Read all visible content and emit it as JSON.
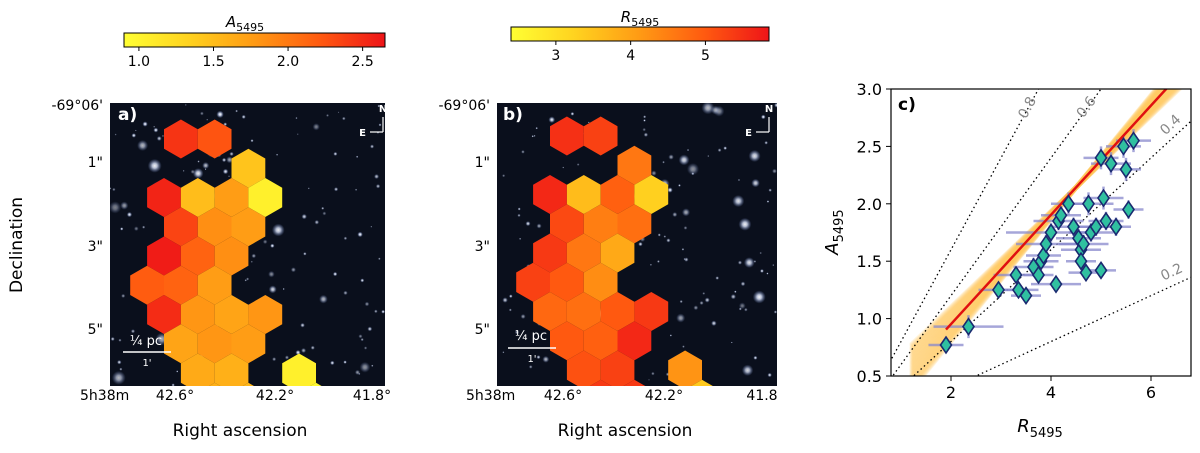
{
  "colors": {
    "cmap": [
      "#ffff33",
      "#ffd21f",
      "#ff9a14",
      "#ff5a10",
      "#ee1418"
    ],
    "fit_line": "#e01010",
    "marker_fill": "#30c0a0",
    "marker_edge": "#1a2a70",
    "errorbar": "#8888cc",
    "band": "#ffc85a",
    "sky": "#0a0f1c"
  },
  "chart_data": [
    {
      "panel": "a",
      "type": "heatmap",
      "panel_label": "a)",
      "colorbar": {
        "title": "A",
        "title_sub": "5495",
        "range": [
          0.9,
          2.65
        ],
        "ticks": [
          1.0,
          1.5,
          2.0,
          2.5
        ],
        "tick_labels": [
          "1.0",
          "1.5",
          "2.0",
          "2.5"
        ]
      },
      "ylabel": "Declination",
      "xlabel": "Right ascension",
      "y_ticks": [
        "-69°06'",
        "1\"",
        "3\"",
        "5\""
      ],
      "x_ticks": [
        "5h38m",
        "42.6°",
        "42.2°",
        "41.8°"
      ],
      "compass": {
        "north": "N",
        "east": "E"
      },
      "scalebar": {
        "label": "¼ pc",
        "sublabel": "1'"
      },
      "hex_cells": [
        {
          "col": 1,
          "row": 0,
          "value": 2.45
        },
        {
          "col": 3,
          "row": 0,
          "value": 2.25
        },
        {
          "col": 5,
          "row": 1,
          "value": 1.45
        },
        {
          "col": 0,
          "row": 2,
          "value": 2.55
        },
        {
          "col": 2,
          "row": 2,
          "value": 1.5
        },
        {
          "col": 4,
          "row": 2,
          "value": 1.75
        },
        {
          "col": 6,
          "row": 2,
          "value": 1.05
        },
        {
          "col": 1,
          "row": 3,
          "value": 2.35
        },
        {
          "col": 3,
          "row": 3,
          "value": 1.85
        },
        {
          "col": 5,
          "row": 3,
          "value": 1.75
        },
        {
          "col": 0,
          "row": 4,
          "value": 2.6
        },
        {
          "col": 2,
          "row": 4,
          "value": 2.15
        },
        {
          "col": 4,
          "row": 4,
          "value": 1.85
        },
        {
          "col": -1,
          "row": 5,
          "value": 2.2
        },
        {
          "col": 1,
          "row": 5,
          "value": 2.15
        },
        {
          "col": 3,
          "row": 5,
          "value": 1.75
        },
        {
          "col": 0,
          "row": 6,
          "value": 2.5
        },
        {
          "col": 2,
          "row": 6,
          "value": 1.8
        },
        {
          "col": 4,
          "row": 6,
          "value": 1.7
        },
        {
          "col": 6,
          "row": 6,
          "value": 1.8
        },
        {
          "col": 1,
          "row": 7,
          "value": 1.7
        },
        {
          "col": 3,
          "row": 7,
          "value": 1.8
        },
        {
          "col": 5,
          "row": 7,
          "value": 1.75
        },
        {
          "col": 2,
          "row": 8,
          "value": 1.65
        },
        {
          "col": 4,
          "row": 8,
          "value": 1.6
        },
        {
          "col": 8,
          "row": 8,
          "value": 1.05
        },
        {
          "col": 3,
          "row": 9,
          "value": 1.6
        },
        {
          "col": 5,
          "row": 9,
          "value": 1.55
        },
        {
          "col": 9,
          "row": 9,
          "value": 0.95
        }
      ]
    },
    {
      "panel": "b",
      "type": "heatmap",
      "panel_label": "b)",
      "colorbar": {
        "title": "R",
        "title_sub": "5495",
        "range": [
          2.4,
          5.85
        ],
        "ticks": [
          3,
          4,
          5
        ],
        "tick_labels": [
          "3",
          "4",
          "5"
        ]
      },
      "xlabel": "Right ascension",
      "y_ticks": [
        "-69°06'",
        "1\"",
        "3\"",
        "5\""
      ],
      "x_ticks": [
        "5h38m",
        "42.6°",
        "42.2°",
        "41.8"
      ],
      "compass": {
        "north": "N",
        "east": "E"
      },
      "scalebar": {
        "label": "¼ pc",
        "sublabel": "1'"
      },
      "hex_cells": [
        {
          "col": 1,
          "row": 0,
          "value": 5.5
        },
        {
          "col": 3,
          "row": 0,
          "value": 5.3
        },
        {
          "col": 5,
          "row": 1,
          "value": 4.6
        },
        {
          "col": 0,
          "row": 2,
          "value": 5.6
        },
        {
          "col": 2,
          "row": 2,
          "value": 3.6
        },
        {
          "col": 4,
          "row": 2,
          "value": 4.9
        },
        {
          "col": 6,
          "row": 2,
          "value": 3.3
        },
        {
          "col": 1,
          "row": 3,
          "value": 5.2
        },
        {
          "col": 3,
          "row": 3,
          "value": 4.5
        },
        {
          "col": 5,
          "row": 3,
          "value": 4.7
        },
        {
          "col": 0,
          "row": 4,
          "value": 5.4
        },
        {
          "col": 2,
          "row": 4,
          "value": 4.6
        },
        {
          "col": 4,
          "row": 4,
          "value": 3.9
        },
        {
          "col": -1,
          "row": 5,
          "value": 5.3
        },
        {
          "col": 1,
          "row": 5,
          "value": 5.0
        },
        {
          "col": 3,
          "row": 5,
          "value": 4.3
        },
        {
          "col": 0,
          "row": 6,
          "value": 4.8
        },
        {
          "col": 2,
          "row": 6,
          "value": 4.7
        },
        {
          "col": 4,
          "row": 6,
          "value": 5.0
        },
        {
          "col": 6,
          "row": 6,
          "value": 5.4
        },
        {
          "col": 1,
          "row": 7,
          "value": 5.0
        },
        {
          "col": 3,
          "row": 7,
          "value": 4.9
        },
        {
          "col": 5,
          "row": 7,
          "value": 5.6
        },
        {
          "col": 2,
          "row": 8,
          "value": 5.1
        },
        {
          "col": 4,
          "row": 8,
          "value": 5.3
        },
        {
          "col": 8,
          "row": 8,
          "value": 4.2
        },
        {
          "col": 3,
          "row": 9,
          "value": 5.4
        },
        {
          "col": 5,
          "row": 9,
          "value": 5.4
        },
        {
          "col": 9,
          "row": 9,
          "value": 3.4
        }
      ]
    },
    {
      "panel": "c",
      "type": "scatter",
      "panel_label": "c)",
      "xlabel": "R",
      "xlabel_sub": "5495",
      "ylabel": "A",
      "ylabel_sub": "5495",
      "xlim": [
        0.8,
        6.8
      ],
      "ylim": [
        0.5,
        3.0
      ],
      "x_ticks": [
        2,
        4,
        6
      ],
      "y_ticks": [
        0.5,
        1.0,
        1.5,
        2.0,
        2.5,
        3.0
      ],
      "y_tick_labels": [
        "0.5",
        "1.0",
        "1.5",
        "2.0",
        "2.5",
        "3.0"
      ],
      "fit": {
        "intercept": 0.0,
        "slope": 0.476,
        "x0": 1.9,
        "x1": 6.6
      },
      "iso_lines": [
        {
          "value": 0.8,
          "label": "0.8"
        },
        {
          "value": 0.6,
          "label": "0.6"
        },
        {
          "value": 0.4,
          "label": "0.4"
        },
        {
          "value": 0.2,
          "label": "0.2"
        }
      ],
      "points": [
        {
          "x": 1.9,
          "y": 0.77,
          "xerr": 0.35,
          "yerr": 0.05
        },
        {
          "x": 2.35,
          "y": 0.93,
          "xerr": 0.7,
          "yerr": 0.1
        },
        {
          "x": 2.95,
          "y": 1.25,
          "xerr": 0.4,
          "yerr": 0.05
        },
        {
          "x": 3.3,
          "y": 1.38,
          "xerr": 0.45,
          "yerr": 0.05
        },
        {
          "x": 3.35,
          "y": 1.25,
          "xerr": 0.4,
          "yerr": 0.05
        },
        {
          "x": 3.5,
          "y": 1.2,
          "xerr": 0.3,
          "yerr": 0.05
        },
        {
          "x": 3.65,
          "y": 1.45,
          "xerr": 0.4,
          "yerr": 0.08
        },
        {
          "x": 3.8,
          "y": 1.5,
          "xerr": 0.35,
          "yerr": 0.08
        },
        {
          "x": 3.85,
          "y": 1.55,
          "xerr": 0.35,
          "yerr": 0.08
        },
        {
          "x": 3.9,
          "y": 1.65,
          "xerr": 0.6,
          "yerr": 0.08
        },
        {
          "x": 3.75,
          "y": 1.38,
          "xerr": 0.3,
          "yerr": 0.05
        },
        {
          "x": 4.0,
          "y": 1.75,
          "xerr": 0.9,
          "yerr": 0.08
        },
        {
          "x": 4.1,
          "y": 1.3,
          "xerr": 0.5,
          "yerr": 0.05
        },
        {
          "x": 4.15,
          "y": 1.85,
          "xerr": 0.5,
          "yerr": 0.08
        },
        {
          "x": 4.2,
          "y": 1.9,
          "xerr": 0.4,
          "yerr": 0.08
        },
        {
          "x": 4.35,
          "y": 2.0,
          "xerr": 0.35,
          "yerr": 0.1
        },
        {
          "x": 4.45,
          "y": 1.8,
          "xerr": 0.5,
          "yerr": 0.08
        },
        {
          "x": 4.55,
          "y": 1.7,
          "xerr": 0.45,
          "yerr": 0.08
        },
        {
          "x": 4.6,
          "y": 1.6,
          "xerr": 0.4,
          "yerr": 0.08
        },
        {
          "x": 4.6,
          "y": 1.5,
          "xerr": 0.3,
          "yerr": 0.06
        },
        {
          "x": 4.65,
          "y": 1.65,
          "xerr": 0.5,
          "yerr": 0.08
        },
        {
          "x": 4.7,
          "y": 1.4,
          "xerr": 0.35,
          "yerr": 0.06
        },
        {
          "x": 4.75,
          "y": 2.0,
          "xerr": 0.5,
          "yerr": 0.1
        },
        {
          "x": 4.8,
          "y": 1.75,
          "xerr": 0.45,
          "yerr": 0.08
        },
        {
          "x": 4.9,
          "y": 1.8,
          "xerr": 0.4,
          "yerr": 0.08
        },
        {
          "x": 5.0,
          "y": 2.4,
          "xerr": 0.35,
          "yerr": 0.1
        },
        {
          "x": 5.0,
          "y": 1.42,
          "xerr": 0.3,
          "yerr": 0.06
        },
        {
          "x": 5.05,
          "y": 2.05,
          "xerr": 0.4,
          "yerr": 0.1
        },
        {
          "x": 5.1,
          "y": 1.85,
          "xerr": 0.35,
          "yerr": 0.08
        },
        {
          "x": 5.2,
          "y": 2.35,
          "xerr": 0.4,
          "yerr": 0.1
        },
        {
          "x": 5.3,
          "y": 1.8,
          "xerr": 0.3,
          "yerr": 0.08
        },
        {
          "x": 5.45,
          "y": 2.5,
          "xerr": 0.35,
          "yerr": 0.1
        },
        {
          "x": 5.5,
          "y": 2.3,
          "xerr": 0.3,
          "yerr": 0.1
        },
        {
          "x": 5.55,
          "y": 1.95,
          "xerr": 0.3,
          "yerr": 0.08
        },
        {
          "x": 5.65,
          "y": 2.55,
          "xerr": 0.35,
          "yerr": 0.1
        }
      ]
    }
  ]
}
